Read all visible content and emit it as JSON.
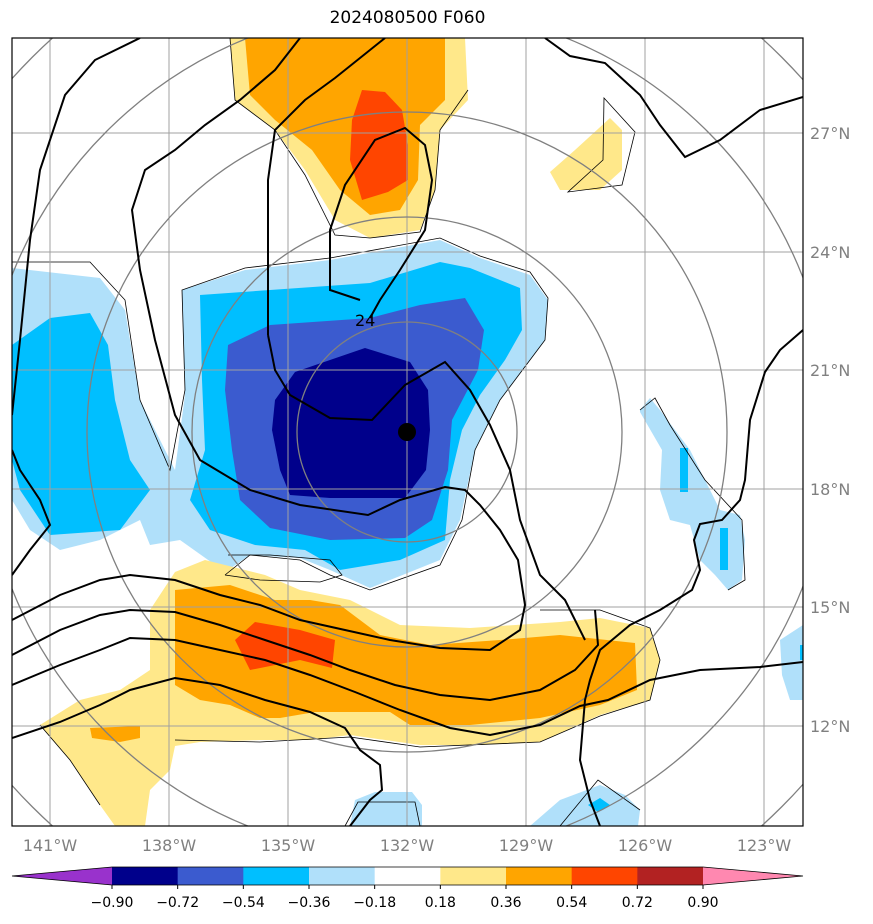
{
  "title": "2024080500 F060",
  "longitude_labels": [
    "141°W",
    "138°W",
    "135°W",
    "132°W",
    "129°W",
    "126°W",
    "123°W"
  ],
  "latitude_labels": [
    "27°N",
    "24°N",
    "21°N",
    "18°N",
    "15°N",
    "12°N"
  ],
  "contour_label": "24",
  "colorbar": {
    "ticks": [
      "−0.90",
      "−0.72",
      "−0.54",
      "−0.36",
      "−0.18",
      "0.18",
      "0.36",
      "0.54",
      "0.72",
      "0.90"
    ],
    "colors": [
      "#9932cc",
      "#00008b",
      "#3b5bcf",
      "#00bfff",
      "#b0e0fa",
      "#ffffff",
      "#ffe88a",
      "#ffa500",
      "#ff4500",
      "#b22222",
      "#ff88b0"
    ]
  },
  "colors": {
    "deep_blue": "#00008b",
    "royal_blue": "#3b5bcf",
    "sky_blue": "#00bfff",
    "light_blue": "#b0e0fa",
    "light_yellow": "#ffe88a",
    "orange": "#ffa500",
    "red_orange": "#ff4500",
    "grid": "#a0a0a0",
    "circle": "#808080"
  }
}
